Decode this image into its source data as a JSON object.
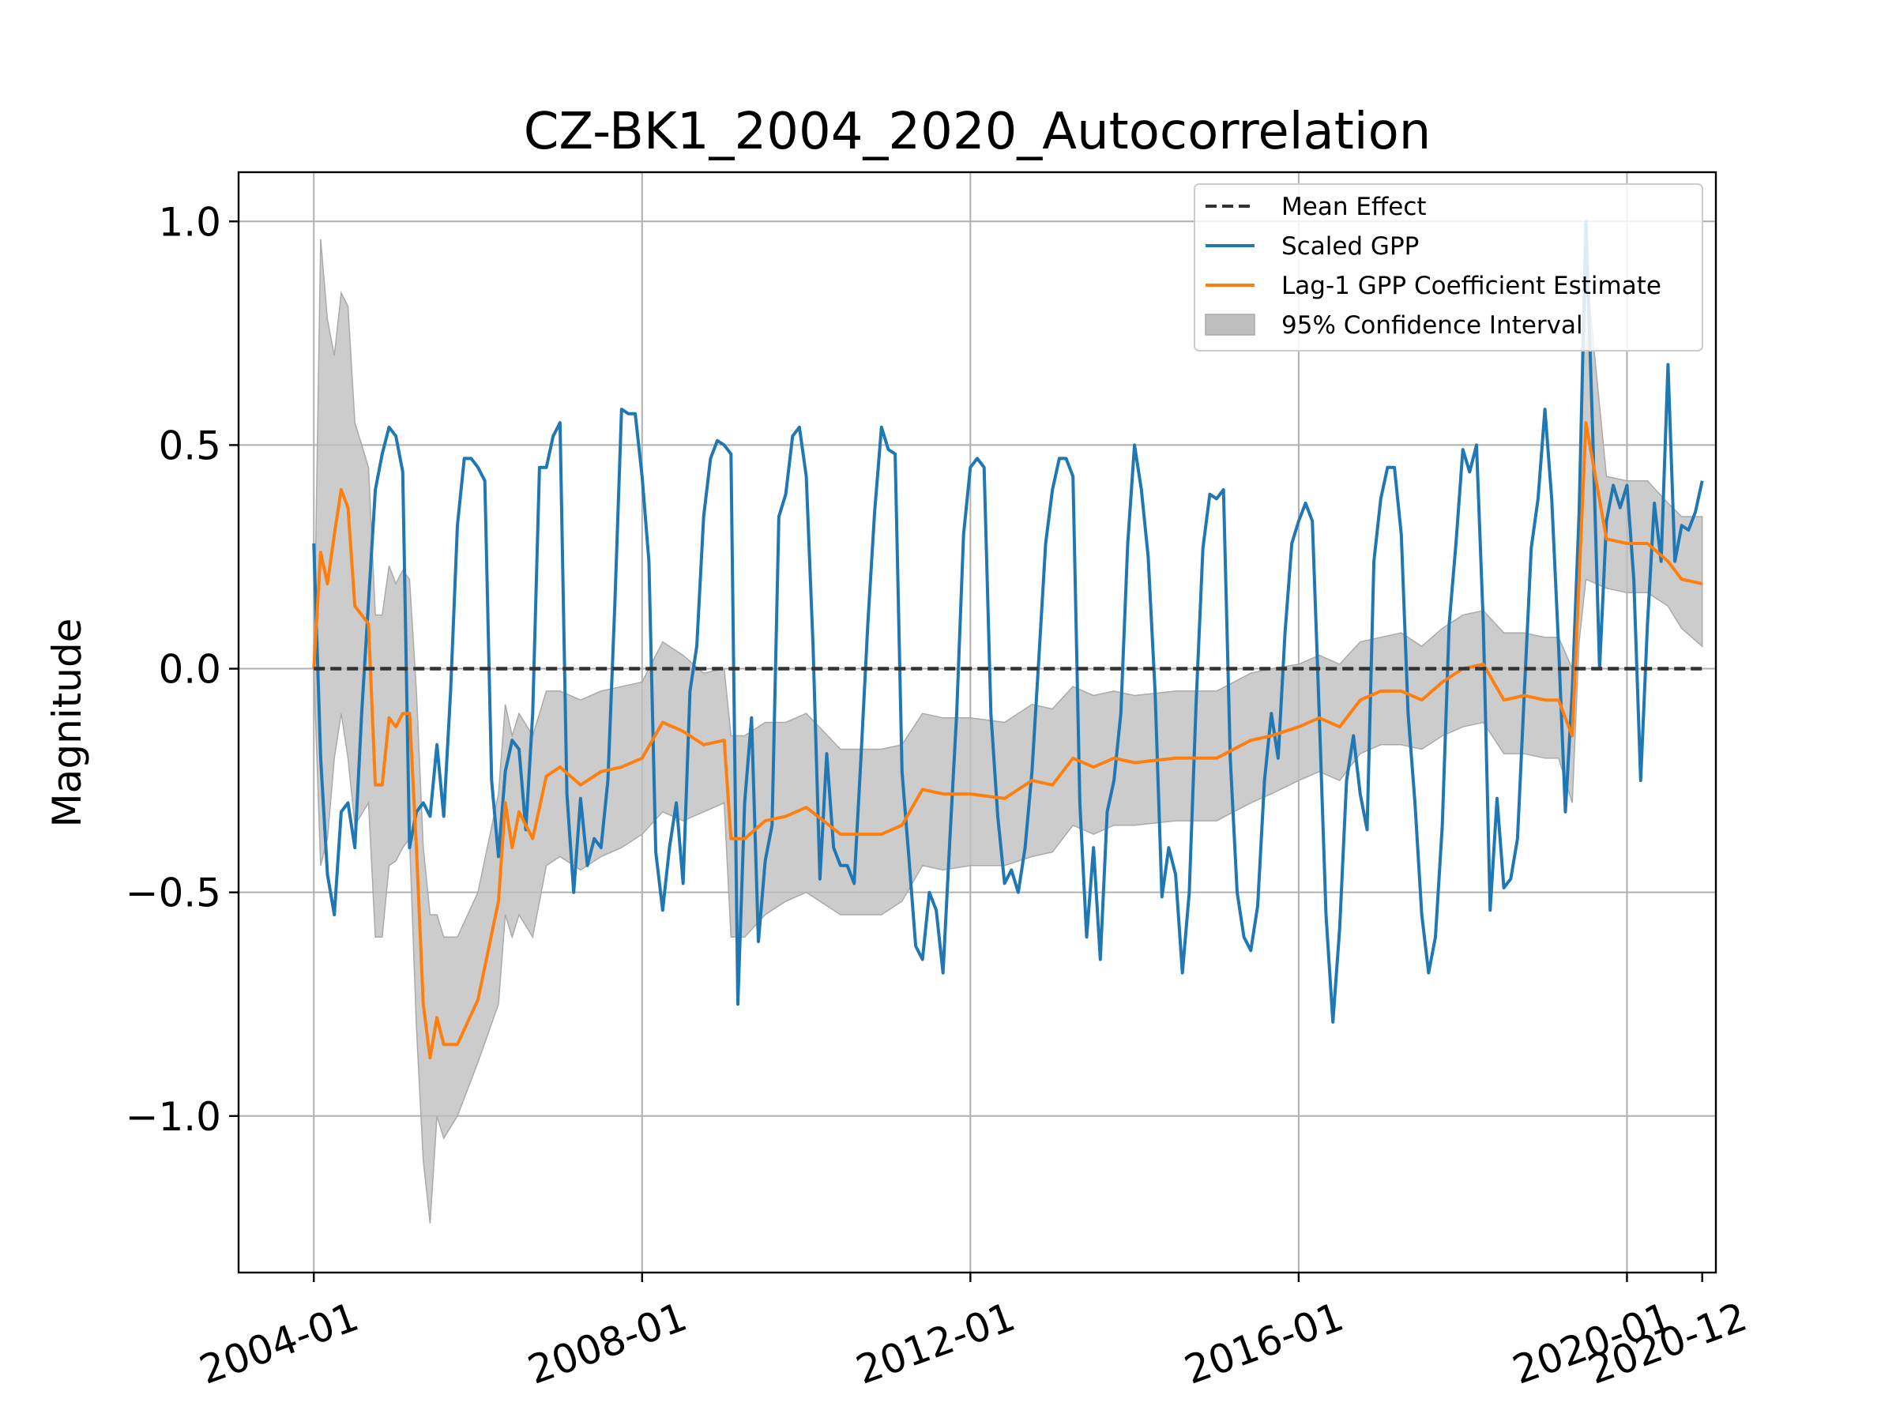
{
  "chart_data": {
    "type": "line",
    "title": "CZ-BK1_2004_2020_Autocorrelation",
    "xlabel": "",
    "ylabel": "Magnitude",
    "xlim": [
      "2003-02",
      "2021-02"
    ],
    "ylim": [
      -1.35,
      1.11
    ],
    "yticks": [
      1.0,
      0.5,
      0.0,
      -0.5,
      -1.0
    ],
    "ytick_labels": [
      "1.0",
      "0.5",
      "0.0",
      "−0.5",
      "−1.0"
    ],
    "xticks": [
      "2004-01",
      "2008-01",
      "2012-01",
      "2016-01",
      "2020-01",
      "2020-12"
    ],
    "grid": true,
    "legend_position": "upper right",
    "legend": [
      {
        "label": "Mean Effect",
        "kind": "dashed-line",
        "color": "#333333"
      },
      {
        "label": "Scaled GPP",
        "kind": "line",
        "color": "#1f77b4"
      },
      {
        "label": "Lag-1 GPP Coefficient Estimate",
        "kind": "line",
        "color": "#ff7f0e"
      },
      {
        "label": "95% Confidence Interval",
        "kind": "band",
        "color": "#bfbfbf"
      }
    ],
    "series": [
      {
        "name": "Mean Effect",
        "color": "#333333",
        "style": "dashed",
        "x": [
          "2004-01",
          "2020-12"
        ],
        "values": [
          0.0,
          0.0
        ]
      },
      {
        "name": "Scaled GPP",
        "color": "#1f77b4",
        "style": "solid",
        "x": [
          "2004-01",
          "2004-02",
          "2004-03",
          "2004-04",
          "2004-05",
          "2004-06",
          "2004-07",
          "2004-08",
          "2004-09",
          "2004-10",
          "2004-11",
          "2004-12",
          "2005-01",
          "2005-02",
          "2005-03",
          "2005-04",
          "2005-05",
          "2005-06",
          "2005-07",
          "2005-08",
          "2005-09",
          "2005-10",
          "2005-11",
          "2005-12",
          "2006-01",
          "2006-02",
          "2006-03",
          "2006-04",
          "2006-05",
          "2006-06",
          "2006-07",
          "2006-08",
          "2006-09",
          "2006-10",
          "2006-11",
          "2006-12",
          "2007-01",
          "2007-02",
          "2007-03",
          "2007-04",
          "2007-05",
          "2007-06",
          "2007-07",
          "2007-08",
          "2007-09",
          "2007-10",
          "2007-11",
          "2007-12",
          "2008-01",
          "2008-02",
          "2008-03",
          "2008-04",
          "2008-05",
          "2008-06",
          "2008-07",
          "2008-08",
          "2008-09",
          "2008-10",
          "2008-11",
          "2008-12",
          "2009-01",
          "2009-02",
          "2009-03",
          "2009-04",
          "2009-05",
          "2009-06",
          "2009-07",
          "2009-08",
          "2009-09",
          "2009-10",
          "2009-11",
          "2009-12",
          "2010-01",
          "2010-02",
          "2010-03",
          "2010-04",
          "2010-05",
          "2010-06",
          "2010-07",
          "2010-08",
          "2010-09",
          "2010-10",
          "2010-11",
          "2010-12",
          "2011-01",
          "2011-02",
          "2011-03",
          "2011-04",
          "2011-05",
          "2011-06",
          "2011-07",
          "2011-08",
          "2011-09",
          "2011-10",
          "2011-11",
          "2011-12",
          "2012-01",
          "2012-02",
          "2012-03",
          "2012-04",
          "2012-05",
          "2012-06",
          "2012-07",
          "2012-08",
          "2012-09",
          "2012-10",
          "2012-11",
          "2012-12",
          "2013-01",
          "2013-02",
          "2013-03",
          "2013-04",
          "2013-05",
          "2013-06",
          "2013-07",
          "2013-08",
          "2013-09",
          "2013-10",
          "2013-11",
          "2013-12",
          "2014-01",
          "2014-02",
          "2014-03",
          "2014-04",
          "2014-05",
          "2014-06",
          "2014-07",
          "2014-08",
          "2014-09",
          "2014-10",
          "2014-11",
          "2014-12",
          "2015-01",
          "2015-02",
          "2015-03",
          "2015-04",
          "2015-05",
          "2015-06",
          "2015-07",
          "2015-08",
          "2015-09",
          "2015-10",
          "2015-11",
          "2015-12",
          "2016-01",
          "2016-02",
          "2016-03",
          "2016-04",
          "2016-05",
          "2016-06",
          "2016-07",
          "2016-08",
          "2016-09",
          "2016-10",
          "2016-11",
          "2016-12",
          "2017-01",
          "2017-02",
          "2017-03",
          "2017-04",
          "2017-05",
          "2017-06",
          "2017-07",
          "2017-08",
          "2017-09",
          "2017-10",
          "2017-11",
          "2017-12",
          "2018-01",
          "2018-02",
          "2018-03",
          "2018-04",
          "2018-05",
          "2018-06",
          "2018-07",
          "2018-08",
          "2018-09",
          "2018-10",
          "2018-11",
          "2018-12",
          "2019-01",
          "2019-02",
          "2019-03",
          "2019-04",
          "2019-05",
          "2019-06",
          "2019-07",
          "2019-08",
          "2019-09",
          "2019-10",
          "2019-11",
          "2019-12",
          "2020-01",
          "2020-02",
          "2020-03",
          "2020-04",
          "2020-05",
          "2020-06",
          "2020-07",
          "2020-08",
          "2020-09",
          "2020-10",
          "2020-11",
          "2020-12"
        ],
        "values": [
          0.28,
          -0.2,
          -0.46,
          -0.55,
          -0.32,
          -0.3,
          -0.4,
          -0.1,
          0.15,
          0.4,
          0.48,
          0.54,
          0.52,
          0.44,
          -0.4,
          -0.32,
          -0.3,
          -0.33,
          -0.17,
          -0.33,
          -0.05,
          0.32,
          0.47,
          0.47,
          0.45,
          0.42,
          -0.25,
          -0.42,
          -0.23,
          -0.16,
          -0.18,
          -0.36,
          -0.1,
          0.45,
          0.45,
          0.52,
          0.55,
          -0.28,
          -0.5,
          -0.29,
          -0.44,
          -0.38,
          -0.4,
          -0.25,
          0.14,
          0.58,
          0.57,
          0.57,
          0.43,
          0.24,
          -0.41,
          -0.54,
          -0.4,
          -0.3,
          -0.48,
          -0.05,
          0.05,
          0.34,
          0.47,
          0.51,
          0.5,
          0.48,
          -0.75,
          -0.3,
          -0.11,
          -0.61,
          -0.43,
          -0.35,
          0.34,
          0.39,
          0.52,
          0.54,
          0.43,
          0.05,
          -0.47,
          -0.19,
          -0.4,
          -0.44,
          -0.44,
          -0.48,
          -0.2,
          0.1,
          0.35,
          0.54,
          0.49,
          0.48,
          -0.23,
          -0.42,
          -0.62,
          -0.65,
          -0.5,
          -0.54,
          -0.68,
          -0.38,
          -0.1,
          0.3,
          0.45,
          0.47,
          0.45,
          -0.1,
          -0.33,
          -0.48,
          -0.45,
          -0.5,
          -0.4,
          -0.23,
          0.02,
          0.28,
          0.4,
          0.47,
          0.47,
          0.43,
          -0.3,
          -0.6,
          -0.4,
          -0.65,
          -0.32,
          -0.25,
          -0.1,
          0.28,
          0.5,
          0.4,
          0.25,
          -0.05,
          -0.51,
          -0.4,
          -0.46,
          -0.68,
          -0.5,
          -0.08,
          0.27,
          0.39,
          0.38,
          0.4,
          -0.2,
          -0.5,
          -0.6,
          -0.63,
          -0.53,
          -0.25,
          -0.1,
          -0.2,
          0.08,
          0.28,
          0.33,
          0.37,
          0.33,
          -0.1,
          -0.55,
          -0.79,
          -0.58,
          -0.25,
          -0.15,
          -0.28,
          -0.36,
          0.24,
          0.38,
          0.45,
          0.45,
          0.3,
          -0.1,
          -0.3,
          -0.55,
          -0.68,
          -0.6,
          -0.35,
          0.1,
          0.28,
          0.49,
          0.44,
          0.5,
          0.1,
          -0.54,
          -0.29,
          -0.49,
          -0.47,
          -0.38,
          -0.05,
          0.27,
          0.38,
          0.58,
          0.38,
          0.05,
          -0.32,
          -0.05,
          0.35,
          1.0,
          0.52,
          0.0,
          0.33,
          0.41,
          0.36,
          0.41,
          0.2,
          -0.25,
          0.1,
          0.37,
          0.24,
          0.68,
          0.24,
          0.32,
          0.31,
          0.35,
          0.42
        ]
      },
      {
        "name": "Lag-1 GPP Coefficient Estimate",
        "color": "#ff7f0e",
        "style": "solid",
        "x": [
          "2004-01",
          "2004-02",
          "2004-03",
          "2004-04",
          "2004-05",
          "2004-06",
          "2004-07",
          "2004-09",
          "2004-10",
          "2004-11",
          "2004-12",
          "2005-01",
          "2005-02",
          "2005-03",
          "2005-04",
          "2005-05",
          "2005-06",
          "2005-07",
          "2005-08",
          "2005-10",
          "2006-01",
          "2006-04",
          "2006-05",
          "2006-06",
          "2006-07",
          "2006-09",
          "2006-11",
          "2007-01",
          "2007-04",
          "2007-07",
          "2007-10",
          "2008-01",
          "2008-04",
          "2008-07",
          "2008-10",
          "2009-01",
          "2009-02",
          "2009-04",
          "2009-07",
          "2009-10",
          "2010-01",
          "2010-06",
          "2010-12",
          "2011-03",
          "2011-06",
          "2011-09",
          "2012-01",
          "2012-06",
          "2012-10",
          "2013-01",
          "2013-04",
          "2013-07",
          "2013-10",
          "2014-01",
          "2014-07",
          "2015-01",
          "2015-06",
          "2015-09",
          "2016-01",
          "2016-04",
          "2016-07",
          "2016-10",
          "2017-01",
          "2017-04",
          "2017-07",
          "2017-10",
          "2018-01",
          "2018-04",
          "2018-07",
          "2018-10",
          "2019-01",
          "2019-03",
          "2019-05",
          "2019-06",
          "2019-07",
          "2019-10",
          "2020-01",
          "2020-04",
          "2020-07",
          "2020-09",
          "2020-12"
        ],
        "values": [
          0.0,
          0.26,
          0.19,
          0.3,
          0.4,
          0.36,
          0.14,
          0.1,
          -0.26,
          -0.26,
          -0.11,
          -0.13,
          -0.1,
          -0.1,
          -0.4,
          -0.75,
          -0.87,
          -0.78,
          -0.84,
          -0.84,
          -0.74,
          -0.52,
          -0.3,
          -0.4,
          -0.32,
          -0.38,
          -0.24,
          -0.22,
          -0.26,
          -0.23,
          -0.22,
          -0.2,
          -0.12,
          -0.14,
          -0.17,
          -0.16,
          -0.38,
          -0.38,
          -0.34,
          -0.33,
          -0.31,
          -0.37,
          -0.37,
          -0.35,
          -0.27,
          -0.28,
          -0.28,
          -0.29,
          -0.25,
          -0.26,
          -0.2,
          -0.22,
          -0.2,
          -0.21,
          -0.2,
          -0.2,
          -0.16,
          -0.15,
          -0.13,
          -0.11,
          -0.13,
          -0.07,
          -0.05,
          -0.05,
          -0.07,
          -0.03,
          0.0,
          0.01,
          -0.07,
          -0.06,
          -0.07,
          -0.07,
          -0.15,
          0.2,
          0.55,
          0.29,
          0.28,
          0.28,
          0.24,
          0.2,
          0.19
        ]
      }
    ],
    "confidence_band": {
      "name": "95% Confidence Interval",
      "color": "#bfbfbf",
      "x": [
        "2004-01",
        "2004-02",
        "2004-03",
        "2004-04",
        "2004-05",
        "2004-06",
        "2004-07",
        "2004-09",
        "2004-10",
        "2004-11",
        "2004-12",
        "2005-01",
        "2005-02",
        "2005-03",
        "2005-04",
        "2005-05",
        "2005-06",
        "2005-07",
        "2005-08",
        "2005-10",
        "2006-01",
        "2006-04",
        "2006-05",
        "2006-06",
        "2006-07",
        "2006-09",
        "2006-11",
        "2007-01",
        "2007-04",
        "2007-07",
        "2007-10",
        "2008-01",
        "2008-04",
        "2008-07",
        "2008-10",
        "2009-01",
        "2009-02",
        "2009-04",
        "2009-07",
        "2009-10",
        "2010-01",
        "2010-06",
        "2010-12",
        "2011-03",
        "2011-06",
        "2011-09",
        "2012-01",
        "2012-06",
        "2012-10",
        "2013-01",
        "2013-04",
        "2013-07",
        "2013-10",
        "2014-01",
        "2014-07",
        "2015-01",
        "2015-06",
        "2015-09",
        "2016-01",
        "2016-04",
        "2016-07",
        "2016-10",
        "2017-01",
        "2017-04",
        "2017-07",
        "2017-10",
        "2018-01",
        "2018-04",
        "2018-07",
        "2018-10",
        "2019-01",
        "2019-03",
        "2019-05",
        "2019-06",
        "2019-07",
        "2019-10",
        "2020-01",
        "2020-04",
        "2020-07",
        "2020-09",
        "2020-12"
      ],
      "lower": [
        0.0,
        -0.44,
        -0.38,
        -0.2,
        -0.1,
        -0.2,
        -0.35,
        -0.3,
        -0.6,
        -0.6,
        -0.44,
        -0.43,
        -0.4,
        -0.38,
        -0.8,
        -1.1,
        -1.24,
        -1.0,
        -1.05,
        -1.0,
        -0.88,
        -0.75,
        -0.55,
        -0.6,
        -0.55,
        -0.6,
        -0.44,
        -0.42,
        -0.45,
        -0.42,
        -0.4,
        -0.37,
        -0.32,
        -0.34,
        -0.32,
        -0.3,
        -0.6,
        -0.6,
        -0.55,
        -0.52,
        -0.5,
        -0.55,
        -0.55,
        -0.52,
        -0.44,
        -0.45,
        -0.44,
        -0.44,
        -0.42,
        -0.41,
        -0.35,
        -0.37,
        -0.35,
        -0.35,
        -0.34,
        -0.34,
        -0.3,
        -0.28,
        -0.25,
        -0.23,
        -0.25,
        -0.19,
        -0.17,
        -0.17,
        -0.18,
        -0.15,
        -0.13,
        -0.12,
        -0.19,
        -0.19,
        -0.2,
        -0.2,
        -0.3,
        0.06,
        0.2,
        0.18,
        0.17,
        0.17,
        0.14,
        0.09,
        0.05
      ],
      "upper": [
        0.0,
        0.96,
        0.78,
        0.7,
        0.84,
        0.81,
        0.55,
        0.45,
        0.12,
        0.12,
        0.23,
        0.19,
        0.22,
        0.2,
        -0.05,
        -0.4,
        -0.55,
        -0.55,
        -0.6,
        -0.6,
        -0.5,
        -0.28,
        -0.08,
        -0.15,
        -0.1,
        -0.15,
        -0.05,
        -0.05,
        -0.07,
        -0.05,
        -0.04,
        -0.03,
        0.06,
        0.03,
        -0.01,
        0.0,
        -0.15,
        -0.15,
        -0.12,
        -0.12,
        -0.1,
        -0.18,
        -0.18,
        -0.17,
        -0.1,
        -0.11,
        -0.11,
        -0.12,
        -0.08,
        -0.09,
        -0.04,
        -0.06,
        -0.05,
        -0.06,
        -0.05,
        -0.05,
        -0.01,
        0.0,
        0.01,
        0.03,
        0.01,
        0.06,
        0.07,
        0.08,
        0.05,
        0.09,
        0.12,
        0.13,
        0.08,
        0.08,
        0.07,
        0.07,
        0.0,
        0.3,
        0.9,
        0.43,
        0.42,
        0.42,
        0.37,
        0.34,
        0.34
      ]
    }
  }
}
